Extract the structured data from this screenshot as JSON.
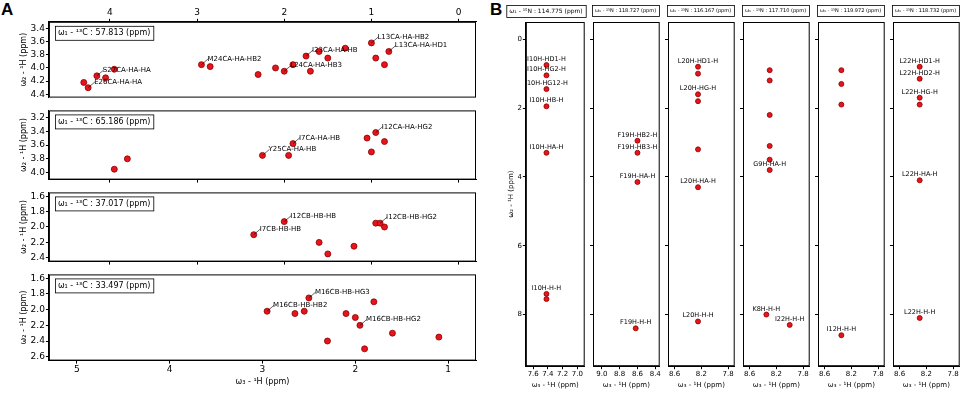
{
  "panel_labels": [
    "A",
    "B"
  ],
  "chart_data": [
    {
      "type": "scatter",
      "title": "ω₁ - ¹³C : 57.813 (ppm)",
      "y_label": "ω₂ - ¹H (ppm)",
      "xlim": [
        4.7,
        -0.2
      ],
      "xticks": [
        4,
        3,
        2,
        1,
        0
      ],
      "ylim": [
        4.45,
        3.3
      ],
      "yticks": [
        3.4,
        3.6,
        3.8,
        {
          "value": 4,
          "label": "4.0"
        },
        4.2,
        4.4
      ],
      "series": [
        {
          "color": "#e8141c",
          "x": [
            4.25,
            4.15,
            4.05,
            3.95,
            4.3,
            2.95,
            2.85,
            2.1,
            2.0,
            1.9,
            1.75,
            1.6,
            1.5,
            1.3,
            1.0,
            0.95,
            0.85,
            0.8,
            1.7,
            2.3
          ],
          "values": [
            4.3,
            4.12,
            4.15,
            4.02,
            4.22,
            3.95,
            3.98,
            4.0,
            4.05,
            3.95,
            3.82,
            3.75,
            3.85,
            3.7,
            3.62,
            3.85,
            3.95,
            3.75,
            4.05,
            4.1
          ]
        }
      ],
      "annotations": [
        {
          "text": "E26CA-HA-HA",
          "x": 4.25,
          "y": 4.3
        },
        {
          "text": "S27CA-HA-HA",
          "x": 4.15,
          "y": 4.12
        },
        {
          "text": "M24CA-HA-HB2",
          "x": 2.95,
          "y": 3.95
        },
        {
          "text": "L24CA-HA-HB3",
          "x": 2.0,
          "y": 4.05
        },
        {
          "text": "I23CA-HA-HB",
          "x": 1.75,
          "y": 3.82
        },
        {
          "text": "L13CA-HA-HD1",
          "x": 0.8,
          "y": 3.75
        },
        {
          "text": "L13CA-HA-HB2",
          "x": 1.0,
          "y": 3.62
        }
      ]
    },
    {
      "type": "scatter",
      "title": "ω₁ - ¹³C : 65.186 (ppm)",
      "y_label": "ω₂ - ¹H (ppm)",
      "tick_labels": "y",
      "xlim": [
        4.7,
        -0.2
      ],
      "xticks": [
        4,
        3,
        2,
        1,
        0
      ],
      "ylim": [
        4.1,
        3.1
      ],
      "yticks": [
        3.2,
        3.4,
        3.6,
        3.8,
        {
          "value": 4,
          "label": "4.0"
        }
      ],
      "series": [
        {
          "color": "#e8141c",
          "x": [
            3.95,
            3.8,
            1.9,
            1.05,
            0.95,
            0.85,
            1.0,
            1.95,
            2.25
          ],
          "values": [
            3.95,
            3.8,
            3.58,
            3.5,
            3.42,
            3.55,
            3.7,
            3.75,
            3.75
          ]
        }
      ],
      "annotations": [
        {
          "text": "I7CA-HA-HB",
          "x": 1.9,
          "y": 3.58
        },
        {
          "text": "I12CA-HA-HG2",
          "x": 0.95,
          "y": 3.42
        },
        {
          "text": "Y25CA-HA-HB",
          "x": 2.25,
          "y": 3.75
        }
      ]
    },
    {
      "type": "scatter",
      "title": "ω₁ - ¹³C : 37.017 (ppm)",
      "y_label": "ω₂ - ¹H (ppm)",
      "tick_labels": "y",
      "xlim": [
        4.7,
        -0.2
      ],
      "xticks": [
        4,
        3,
        2,
        1,
        0
      ],
      "ylim": [
        2.45,
        1.55
      ],
      "yticks": [
        1.6,
        1.8,
        {
          "value": 2,
          "label": "2.0"
        },
        2.2,
        2.4
      ],
      "series": [
        {
          "color": "#e8141c",
          "x": [
            2.35,
            2.0,
            0.95,
            0.85,
            1.6,
            1.2,
            1.5,
            0.9
          ],
          "values": [
            2.1,
            1.93,
            1.95,
            2.0,
            2.2,
            2.25,
            2.35,
            1.95
          ]
        }
      ],
      "annotations": [
        {
          "text": "I12CB-HB-HB",
          "x": 2.0,
          "y": 1.93
        },
        {
          "text": "I7CB-HB-HB",
          "x": 2.35,
          "y": 2.1
        },
        {
          "text": "I12CB-HB-HG2",
          "x": 0.9,
          "y": 1.95
        }
      ]
    },
    {
      "type": "scatter",
      "title": "ω₁ - ¹³C : 33.497 (ppm)",
      "x_label": "ω₃ - ¹H (ppm)",
      "y_label": "ω₂ - ¹H (ppm)",
      "xlim": [
        5.3,
        0.7
      ],
      "xticks": [
        5,
        4,
        3,
        2,
        1
      ],
      "ylim": [
        2.65,
        1.55
      ],
      "yticks": [
        1.6,
        1.8,
        {
          "value": 2,
          "label": "2.0"
        },
        2.2,
        2.4,
        2.6
      ],
      "series": [
        {
          "color": "#e8141c",
          "x": [
            2.95,
            2.65,
            2.55,
            2.1,
            2.0,
            1.95,
            2.5,
            1.8,
            1.6,
            2.3,
            1.9,
            1.1
          ],
          "values": [
            2.02,
            2.05,
            2.02,
            2.05,
            2.1,
            2.2,
            1.85,
            1.9,
            2.3,
            2.4,
            2.5,
            2.35
          ]
        }
      ],
      "annotations": [
        {
          "text": "M16CB-HB-HB2",
          "x": 2.95,
          "y": 2.02
        },
        {
          "text": "M16CB-HB-HG3",
          "x": 2.5,
          "y": 1.85
        },
        {
          "text": "M16CB-HB-HG2",
          "x": 1.95,
          "y": 2.2
        }
      ]
    },
    {
      "type": "scatter",
      "title": "ω₁ - ¹⁵N : 114.775 (ppm)",
      "x_label": "ω₃ - ¹H (ppm)",
      "y_label": "ω₂ - ¹H (ppm)",
      "xlim": [
        7.7,
        6.9
      ],
      "xticks": [
        7.6,
        7.4,
        7.2,
        {
          "value": 7,
          "label": "7.0"
        }
      ],
      "ylim": [
        9.5,
        -0.5
      ],
      "yticks": [
        0,
        2,
        4,
        6,
        8
      ],
      "series": [
        {
          "color": "#e8141c",
          "x": [
            7.42,
            7.42,
            7.42,
            7.42,
            7.42,
            7.42,
            7.42
          ],
          "values": [
            0.75,
            1.05,
            1.45,
            1.95,
            3.3,
            7.4,
            7.55
          ]
        }
      ],
      "annotations": [
        {
          "text": "I10H-HD1-H",
          "x": 7.42,
          "y": 0.75
        },
        {
          "text": "I10H-HG2-H",
          "x": 7.42,
          "y": 1.05
        },
        {
          "text": "I10H-HG12-H",
          "x": 7.42,
          "y": 1.45
        },
        {
          "text": "I10H-HB-H",
          "x": 7.42,
          "y": 1.95
        },
        {
          "text": "I10H-HA-H",
          "x": 7.42,
          "y": 3.3
        },
        {
          "text": "I10H-H-H",
          "x": 7.42,
          "y": 7.4
        }
      ]
    },
    {
      "type": "scatter",
      "title": "ω₁ - ¹⁵N : 118.727 (ppm)",
      "x_label": "ω₃ - ¹H (ppm)",
      "tick_labels": "x",
      "xlim": [
        9.1,
        8.35
      ],
      "xticks": [
        {
          "value": 9,
          "label": "9.0"
        },
        8.8,
        8.6,
        8.4
      ],
      "ylim": [
        9.5,
        -0.5
      ],
      "yticks": [
        0,
        2,
        4,
        6,
        8
      ],
      "series": [
        {
          "color": "#e8141c",
          "x": [
            8.6,
            8.6,
            8.6,
            8.62
          ],
          "values": [
            2.95,
            3.3,
            4.15,
            8.4
          ]
        }
      ],
      "annotations": [
        {
          "text": "F19H-HB2-H",
          "x": 8.6,
          "y": 2.95
        },
        {
          "text": "F19H-HB3-H",
          "x": 8.6,
          "y": 3.3
        },
        {
          "text": "F19H-HA-H",
          "x": 8.6,
          "y": 4.15
        },
        {
          "text": "F19H-H-H",
          "x": 8.62,
          "y": 8.4
        }
      ]
    },
    {
      "type": "scatter",
      "title": "ω₁ - ¹⁵N : 116.167 (ppm)",
      "x_label": "ω₃ - ¹H (ppm)",
      "tick_labels": "x",
      "xlim": [
        8.7,
        7.7
      ],
      "xticks": [
        8.6,
        8.2,
        7.8
      ],
      "ylim": [
        9.5,
        -0.5
      ],
      "yticks": [
        0,
        2,
        4,
        6,
        8
      ],
      "series": [
        {
          "color": "#e8141c",
          "x": [
            8.25,
            8.25,
            8.25,
            8.25,
            8.25,
            8.25,
            8.25
          ],
          "values": [
            0.8,
            1.0,
            1.6,
            1.8,
            3.2,
            4.3,
            8.2
          ]
        }
      ],
      "annotations": [
        {
          "text": "L20H-HD1-H",
          "x": 8.25,
          "y": 0.8
        },
        {
          "text": "L20H-HG-H",
          "x": 8.25,
          "y": 1.6
        },
        {
          "text": "L20H-HA-H",
          "x": 8.25,
          "y": 4.3
        },
        {
          "text": "L20H-H-H",
          "x": 8.25,
          "y": 8.2
        }
      ]
    },
    {
      "type": "scatter",
      "title": "ω₁ - ¹⁵N : 117.710 (ppm)",
      "x_label": "ω₃ - ¹H (ppm)",
      "tick_labels": "x",
      "xlim": [
        8.7,
        7.7
      ],
      "xticks": [
        8.6,
        8.2,
        7.8
      ],
      "ylim": [
        9.5,
        -0.5
      ],
      "yticks": [
        0,
        2,
        4,
        6,
        8
      ],
      "series": [
        {
          "color": "#e8141c",
          "x": [
            8.3,
            8.3,
            8.3,
            8.3,
            8.3,
            8.3,
            8.35,
            8.0
          ],
          "values": [
            0.9,
            1.2,
            2.2,
            3.1,
            3.5,
            3.8,
            8.0,
            8.3
          ]
        }
      ],
      "annotations": [
        {
          "text": "G9H-HA-H",
          "x": 8.3,
          "y": 3.8
        },
        {
          "text": "K8H-H-H",
          "x": 8.35,
          "y": 8.0
        },
        {
          "text": "I22H-H-H",
          "x": 8.0,
          "y": 8.3
        }
      ]
    },
    {
      "type": "scatter",
      "title": "ω₁ - ¹⁵N : 119.972 (ppm)",
      "x_label": "ω₃ - ¹H (ppm)",
      "tick_labels": "x",
      "xlim": [
        8.7,
        7.7
      ],
      "xticks": [
        8.6,
        8.2,
        7.8
      ],
      "ylim": [
        9.5,
        -0.5
      ],
      "yticks": [
        0,
        2,
        4,
        6,
        8
      ],
      "series": [
        {
          "color": "#e8141c",
          "x": [
            8.35,
            8.35,
            8.35,
            8.35
          ],
          "values": [
            0.9,
            1.3,
            1.9,
            8.6
          ]
        }
      ],
      "annotations": [
        {
          "text": "I12H-H-H",
          "x": 8.35,
          "y": 8.6
        }
      ]
    },
    {
      "type": "scatter",
      "title": "ω₁ - ¹⁵N : 118.732 (ppm)",
      "x_label": "ω₃ - ¹H (ppm)",
      "tick_labels": "x",
      "xlim": [
        8.7,
        7.7
      ],
      "xticks": [
        8.6,
        8.2,
        7.8
      ],
      "ylim": [
        9.5,
        -0.5
      ],
      "yticks": [
        0,
        2,
        4,
        6,
        8
      ],
      "series": [
        {
          "color": "#e8141c",
          "x": [
            8.3,
            8.3,
            8.3,
            8.3,
            8.3,
            8.3
          ],
          "values": [
            0.8,
            1.15,
            1.7,
            1.9,
            4.1,
            8.1
          ]
        }
      ],
      "annotations": [
        {
          "text": "L22H-HD1-H",
          "x": 8.3,
          "y": 0.8
        },
        {
          "text": "L22H-HD2-H",
          "x": 8.3,
          "y": 1.15
        },
        {
          "text": "L22H-HG-H",
          "x": 8.3,
          "y": 1.7
        },
        {
          "text": "L22H-HA-H",
          "x": 8.3,
          "y": 4.1
        },
        {
          "text": "L22H-H-H",
          "x": 8.3,
          "y": 8.1
        }
      ]
    }
  ]
}
